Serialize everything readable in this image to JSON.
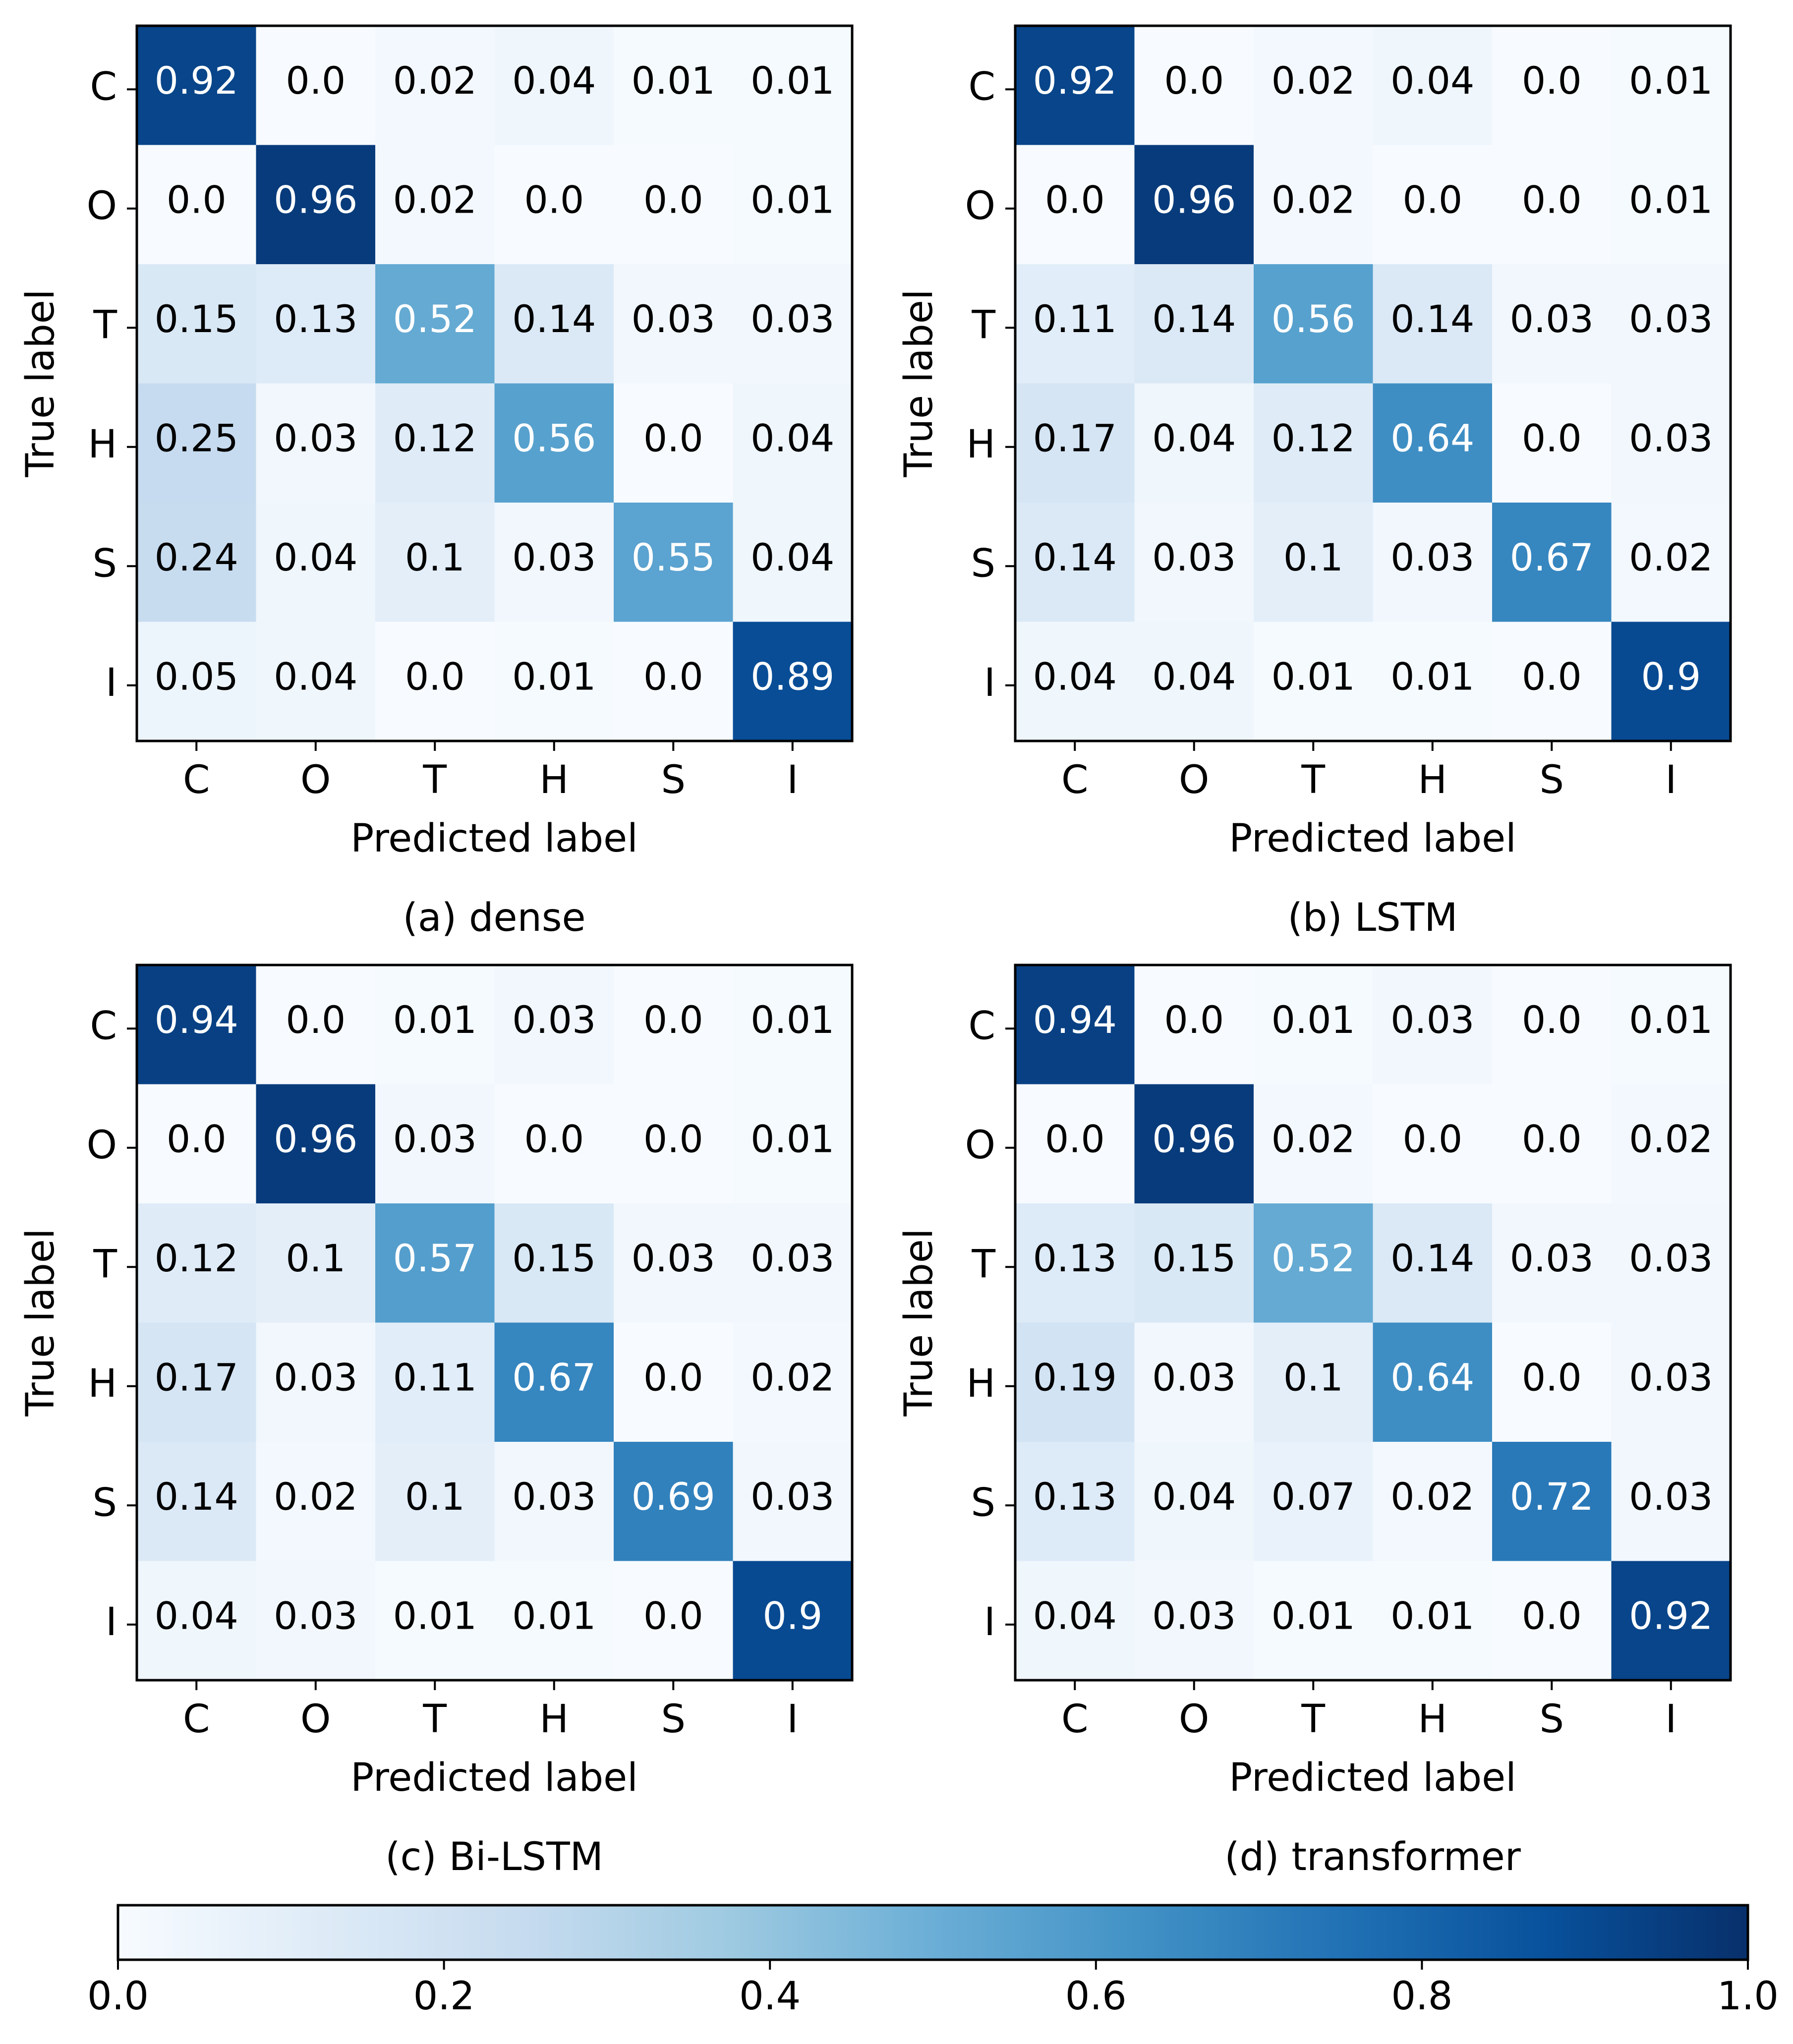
{
  "chart_data": [
    {
      "type": "heatmap",
      "title": "(a) dense",
      "xlabel": "Predicted label",
      "ylabel": "True label",
      "x_categories": [
        "C",
        "O",
        "T",
        "H",
        "S",
        "I"
      ],
      "y_categories": [
        "C",
        "O",
        "T",
        "H",
        "S",
        "I"
      ],
      "values": [
        [
          0.92,
          0.0,
          0.02,
          0.04,
          0.01,
          0.01
        ],
        [
          0.0,
          0.96,
          0.02,
          0.0,
          0.0,
          0.01
        ],
        [
          0.15,
          0.13,
          0.52,
          0.14,
          0.03,
          0.03
        ],
        [
          0.25,
          0.03,
          0.12,
          0.56,
          0.0,
          0.04
        ],
        [
          0.24,
          0.04,
          0.1,
          0.03,
          0.55,
          0.04
        ],
        [
          0.05,
          0.04,
          0.0,
          0.01,
          0.0,
          0.89
        ]
      ]
    },
    {
      "type": "heatmap",
      "title": "(b) LSTM",
      "xlabel": "Predicted label",
      "ylabel": "True label",
      "x_categories": [
        "C",
        "O",
        "T",
        "H",
        "S",
        "I"
      ],
      "y_categories": [
        "C",
        "O",
        "T",
        "H",
        "S",
        "I"
      ],
      "values": [
        [
          0.92,
          0.0,
          0.02,
          0.04,
          0.0,
          0.01
        ],
        [
          0.0,
          0.96,
          0.02,
          0.0,
          0.0,
          0.01
        ],
        [
          0.11,
          0.14,
          0.56,
          0.14,
          0.03,
          0.03
        ],
        [
          0.17,
          0.04,
          0.12,
          0.64,
          0.0,
          0.03
        ],
        [
          0.14,
          0.03,
          0.1,
          0.03,
          0.67,
          0.02
        ],
        [
          0.04,
          0.04,
          0.01,
          0.01,
          0.0,
          0.9
        ]
      ]
    },
    {
      "type": "heatmap",
      "title": "(c) Bi-LSTM",
      "xlabel": "Predicted label",
      "ylabel": "True label",
      "x_categories": [
        "C",
        "O",
        "T",
        "H",
        "S",
        "I"
      ],
      "y_categories": [
        "C",
        "O",
        "T",
        "H",
        "S",
        "I"
      ],
      "values": [
        [
          0.94,
          0.0,
          0.01,
          0.03,
          0.0,
          0.01
        ],
        [
          0.0,
          0.96,
          0.03,
          0.0,
          0.0,
          0.01
        ],
        [
          0.12,
          0.1,
          0.57,
          0.15,
          0.03,
          0.03
        ],
        [
          0.17,
          0.03,
          0.11,
          0.67,
          0.0,
          0.02
        ],
        [
          0.14,
          0.02,
          0.1,
          0.03,
          0.69,
          0.03
        ],
        [
          0.04,
          0.03,
          0.01,
          0.01,
          0.0,
          0.9
        ]
      ]
    },
    {
      "type": "heatmap",
      "title": "(d) transformer",
      "xlabel": "Predicted label",
      "ylabel": "True label",
      "x_categories": [
        "C",
        "O",
        "T",
        "H",
        "S",
        "I"
      ],
      "y_categories": [
        "C",
        "O",
        "T",
        "H",
        "S",
        "I"
      ],
      "values": [
        [
          0.94,
          0.0,
          0.01,
          0.03,
          0.0,
          0.01
        ],
        [
          0.0,
          0.96,
          0.02,
          0.0,
          0.0,
          0.02
        ],
        [
          0.13,
          0.15,
          0.52,
          0.14,
          0.03,
          0.03
        ],
        [
          0.19,
          0.03,
          0.1,
          0.64,
          0.0,
          0.03
        ],
        [
          0.13,
          0.04,
          0.07,
          0.02,
          0.72,
          0.03
        ],
        [
          0.04,
          0.03,
          0.01,
          0.01,
          0.0,
          0.92
        ]
      ]
    }
  ],
  "colorbar": {
    "min": 0.0,
    "max": 1.0,
    "ticks": [
      0.0,
      0.2,
      0.4,
      0.6,
      0.8,
      1.0
    ],
    "tick_labels": [
      "0.0",
      "0.2",
      "0.4",
      "0.6",
      "0.8",
      "1.0"
    ],
    "colormap": "Blues",
    "colors": [
      "#f7fbff",
      "#deebf7",
      "#c6dbef",
      "#9ecae1",
      "#6baed6",
      "#4292c6",
      "#2171b5",
      "#08519c",
      "#08306b"
    ]
  }
}
